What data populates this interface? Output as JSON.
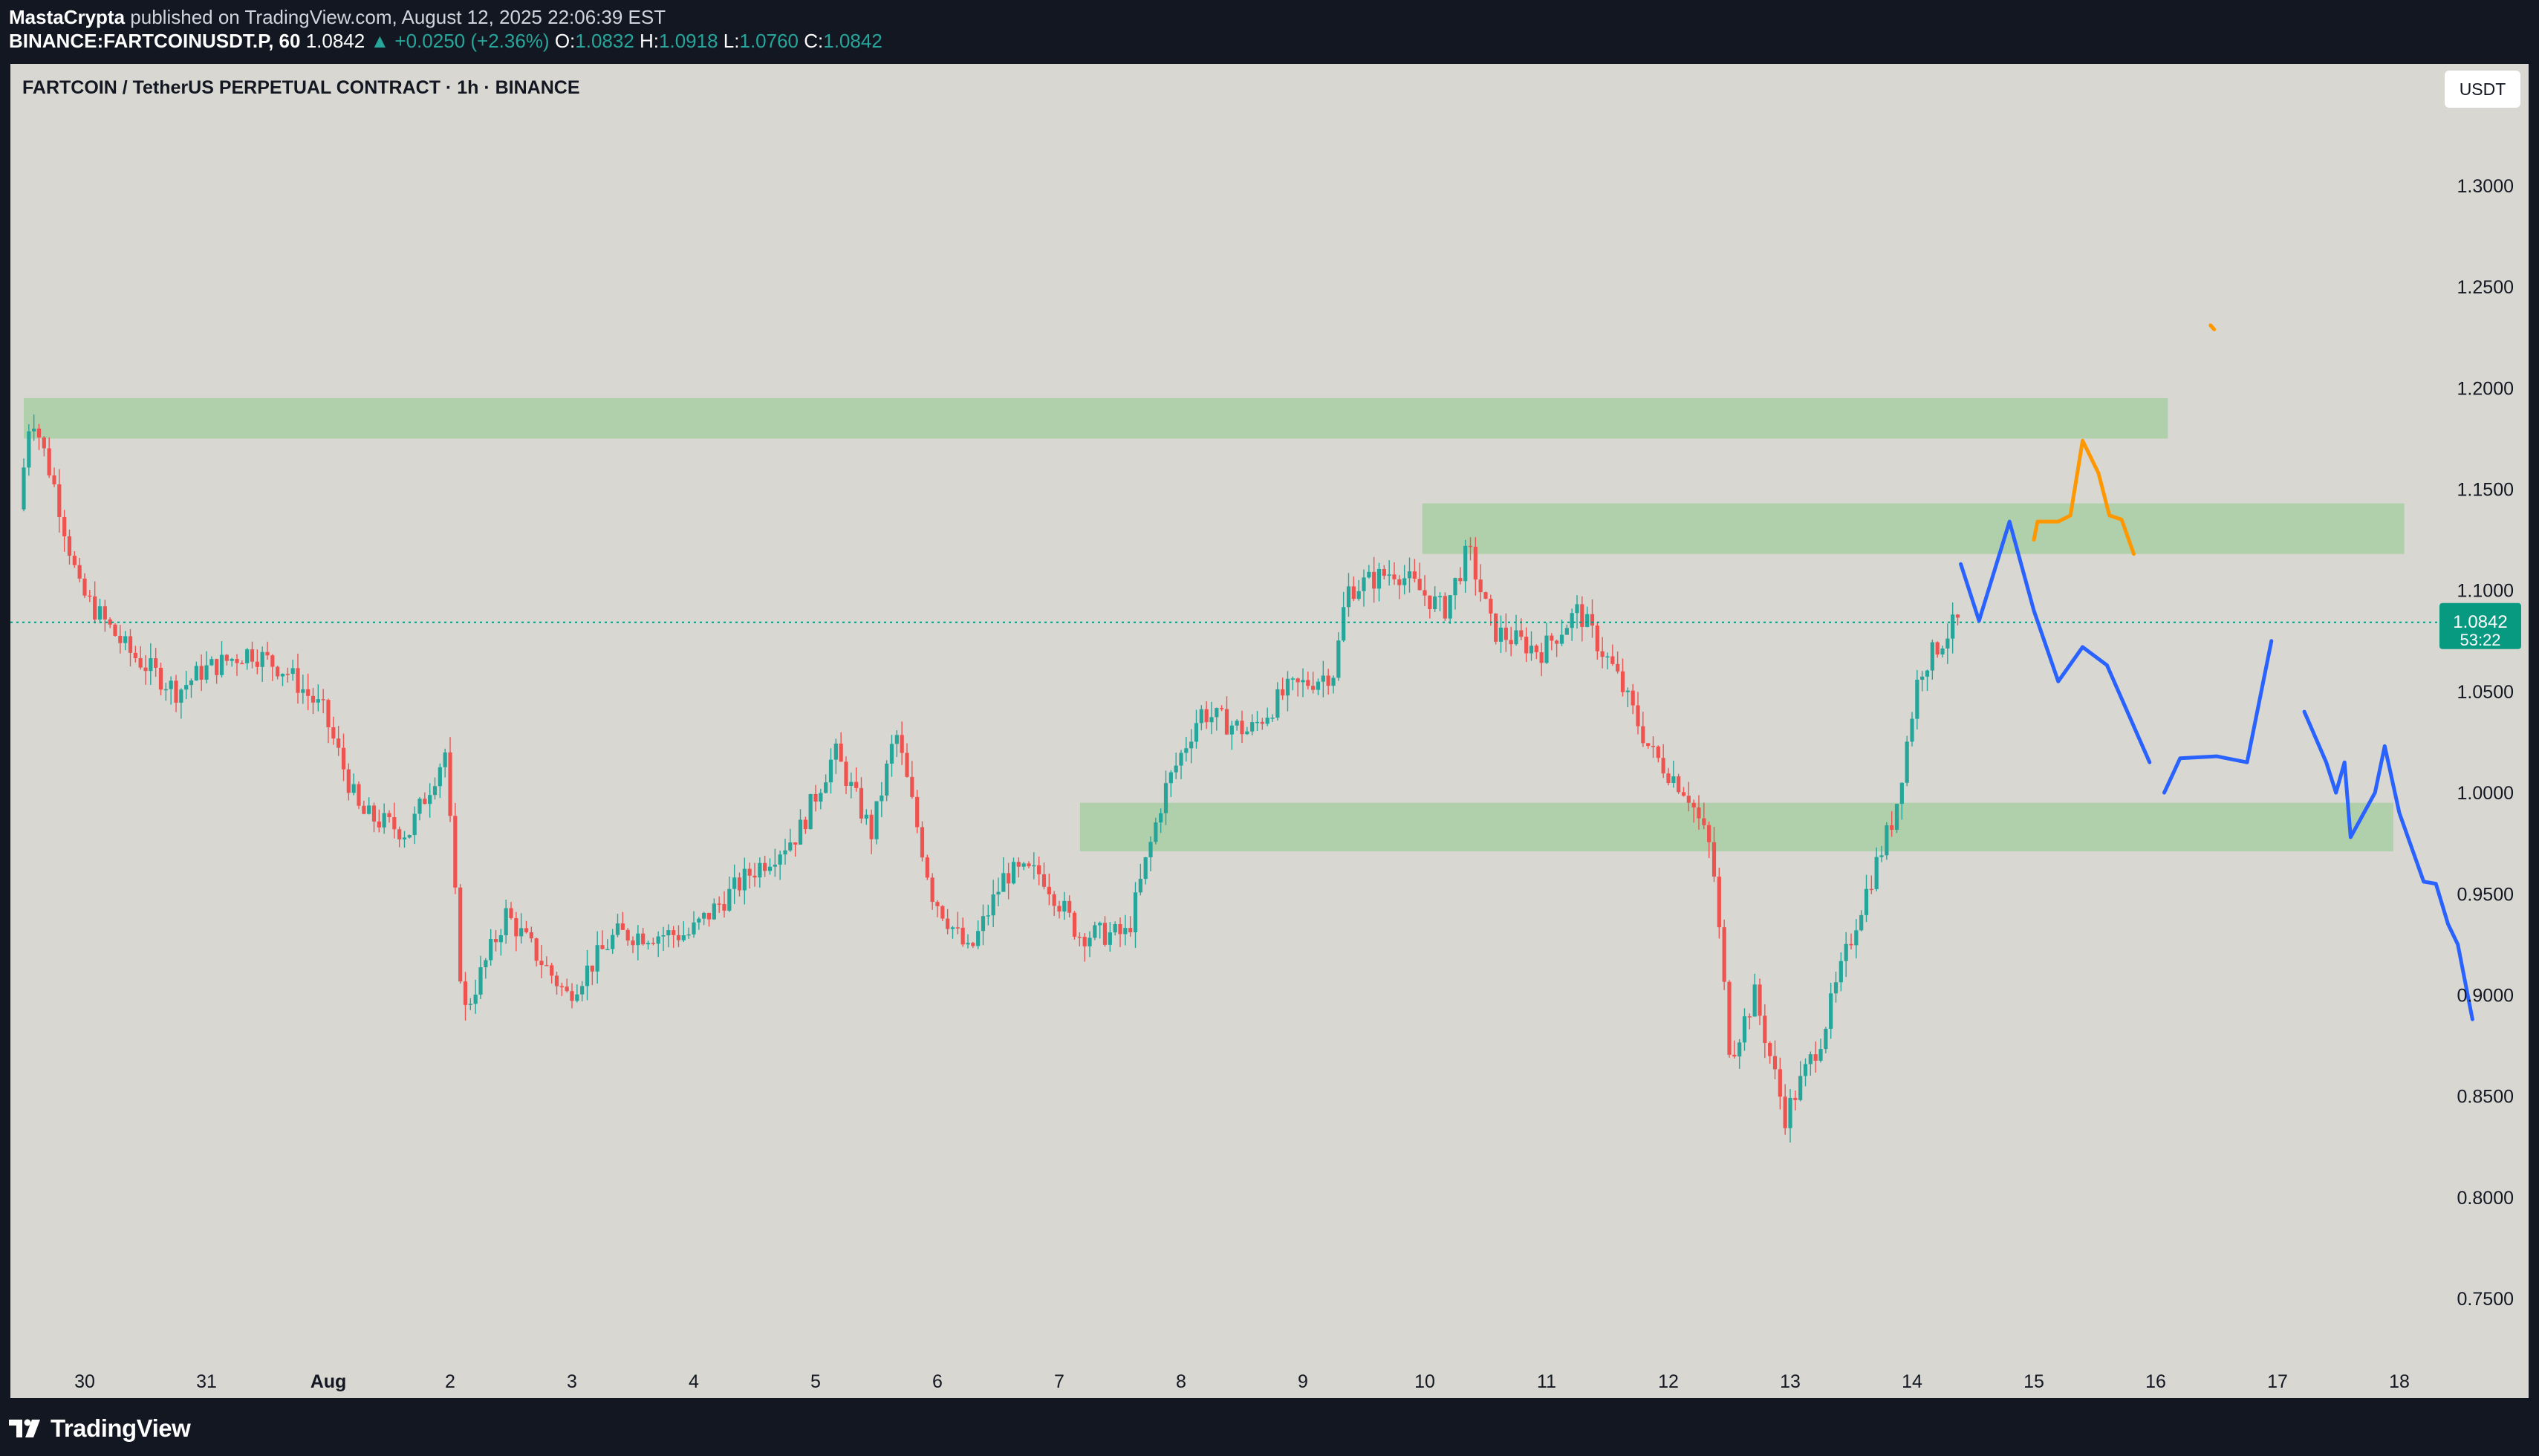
{
  "header": {
    "author": "MastaCrypta",
    "published_text": "published on TradingView.com, August 12, 2025 22:06:39 EST",
    "symbol": "BINANCE:FARTCOINUSDT.P, 60",
    "last": "1.0842",
    "change": "▲ +0.0250 (+2.36%)",
    "o_label": "O:",
    "o_value": "1.0832",
    "h_label": "H:",
    "h_value": "1.0918",
    "l_label": "L:",
    "l_value": "1.0760",
    "c_label": "C:",
    "c_value": "1.0842"
  },
  "chart_title": "FARTCOIN / TetherUS PERPETUAL CONTRACT · 1h · BINANCE",
  "currency_button": "USDT",
  "price_badge": {
    "price": "1.0842",
    "countdown": "53:22"
  },
  "footer": {
    "brand": "TradingView"
  },
  "colors": {
    "background": "#d8d7d2",
    "up": "#26a69a",
    "down": "#ef5350",
    "zone": "#8fc98b",
    "projection_blue": "#2962ff",
    "projection_orange": "#ff9800",
    "badge": "#089981"
  },
  "chart_data": {
    "type": "candlestick",
    "interval": "1h",
    "ylim": [
      0.72,
      1.335
    ],
    "y_ticks": [
      "1.3000",
      "1.2500",
      "1.2000",
      "1.1500",
      "1.1000",
      "1.0500",
      "1.0000",
      "0.9500",
      "0.9000",
      "0.8500",
      "0.8000",
      "0.7500"
    ],
    "x_tick_labels": [
      "30",
      "31",
      "Aug",
      "2",
      "3",
      "4",
      "5",
      "6",
      "7",
      "8",
      "9",
      "10",
      "11",
      "12",
      "13",
      "14",
      "15",
      "16",
      "17",
      "18"
    ],
    "last_price": 1.0842,
    "price_path": [
      {
        "day": 29.5,
        "price": 1.14
      },
      {
        "day": 29.6,
        "price": 1.19
      },
      {
        "day": 29.8,
        "price": 1.15
      },
      {
        "day": 30.0,
        "price": 1.1
      },
      {
        "day": 30.4,
        "price": 1.07
      },
      {
        "day": 30.8,
        "price": 1.05
      },
      {
        "day": 31.0,
        "price": 1.06
      },
      {
        "day": 31.4,
        "price": 1.07
      },
      {
        "day": 31.7,
        "price": 1.06
      },
      {
        "day": 32.0,
        "price": 1.04
      },
      {
        "day": 32.3,
        "price": 0.99
      },
      {
        "day": 32.7,
        "price": 0.98
      },
      {
        "day": 33.0,
        "price": 1.02
      },
      {
        "day": 33.15,
        "price": 0.89
      },
      {
        "day": 33.5,
        "price": 0.94
      },
      {
        "day": 34.0,
        "price": 0.9
      },
      {
        "day": 34.4,
        "price": 0.93
      },
      {
        "day": 35.0,
        "price": 0.93
      },
      {
        "day": 35.5,
        "price": 0.96
      },
      {
        "day": 35.9,
        "price": 0.98
      },
      {
        "day": 36.2,
        "price": 1.02
      },
      {
        "day": 36.5,
        "price": 0.98
      },
      {
        "day": 36.7,
        "price": 1.03
      },
      {
        "day": 37.0,
        "price": 0.95
      },
      {
        "day": 37.3,
        "price": 0.92
      },
      {
        "day": 37.6,
        "price": 0.96
      },
      {
        "day": 37.9,
        "price": 0.96
      },
      {
        "day": 38.2,
        "price": 0.93
      },
      {
        "day": 38.6,
        "price": 0.93
      },
      {
        "day": 38.9,
        "price": 1.0
      },
      {
        "day": 39.2,
        "price": 1.04
      },
      {
        "day": 39.6,
        "price": 1.03
      },
      {
        "day": 39.9,
        "price": 1.05
      },
      {
        "day": 40.3,
        "price": 1.06
      },
      {
        "day": 40.4,
        "price": 1.1
      },
      {
        "day": 40.8,
        "price": 1.11
      },
      {
        "day": 41.2,
        "price": 1.09
      },
      {
        "day": 41.4,
        "price": 1.12
      },
      {
        "day": 41.6,
        "price": 1.08
      },
      {
        "day": 42.0,
        "price": 1.07
      },
      {
        "day": 42.3,
        "price": 1.09
      },
      {
        "day": 42.6,
        "price": 1.06
      },
      {
        "day": 42.9,
        "price": 1.02
      },
      {
        "day": 43.2,
        "price": 1.0
      },
      {
        "day": 43.4,
        "price": 0.97
      },
      {
        "day": 43.55,
        "price": 0.87
      },
      {
        "day": 43.75,
        "price": 0.9
      },
      {
        "day": 44.0,
        "price": 0.84
      },
      {
        "day": 44.3,
        "price": 0.88
      },
      {
        "day": 44.6,
        "price": 0.94
      },
      {
        "day": 44.9,
        "price": 0.99
      },
      {
        "day": 45.1,
        "price": 1.06
      },
      {
        "day": 45.4,
        "price": 1.0842
      }
    ],
    "zones": [
      {
        "day_start": 29.5,
        "day_end": 47.1,
        "low": 1.175,
        "high": 1.195
      },
      {
        "day_start": 40.98,
        "day_end": 49.04,
        "low": 1.118,
        "high": 1.143
      },
      {
        "day_start": 38.17,
        "day_end": 48.95,
        "low": 0.971,
        "high": 0.995
      }
    ],
    "projections": [
      {
        "color": "blue",
        "points": [
          {
            "day": 45.4,
            "price": 1.113
          },
          {
            "day": 45.55,
            "price": 1.085
          },
          {
            "day": 45.8,
            "price": 1.134
          },
          {
            "day": 46.0,
            "price": 1.09
          },
          {
            "day": 46.2,
            "price": 1.055
          },
          {
            "day": 46.4,
            "price": 1.072
          },
          {
            "day": 46.6,
            "price": 1.063
          },
          {
            "day": 46.95,
            "price": 1.015
          }
        ]
      },
      {
        "color": "blue",
        "points": [
          {
            "day": 47.07,
            "price": 1.0
          },
          {
            "day": 47.2,
            "price": 1.017
          },
          {
            "day": 47.5,
            "price": 1.018
          },
          {
            "day": 47.75,
            "price": 1.015
          },
          {
            "day": 47.95,
            "price": 1.075
          }
        ]
      },
      {
        "color": "blue",
        "points": [
          {
            "day": 48.22,
            "price": 1.04
          },
          {
            "day": 48.4,
            "price": 1.015
          },
          {
            "day": 48.48,
            "price": 1.0
          },
          {
            "day": 48.55,
            "price": 1.015
          },
          {
            "day": 48.6,
            "price": 0.978
          },
          {
            "day": 48.8,
            "price": 1.0
          },
          {
            "day": 48.88,
            "price": 1.023
          },
          {
            "day": 49.0,
            "price": 0.99
          },
          {
            "day": 49.2,
            "price": 0.956
          },
          {
            "day": 49.3,
            "price": 0.955
          },
          {
            "day": 49.4,
            "price": 0.935
          },
          {
            "day": 49.48,
            "price": 0.925
          },
          {
            "day": 49.6,
            "price": 0.888
          }
        ]
      },
      {
        "color": "orange",
        "points": [
          {
            "day": 46.0,
            "price": 1.125
          },
          {
            "day": 46.03,
            "price": 1.134
          },
          {
            "day": 46.2,
            "price": 1.134
          },
          {
            "day": 46.3,
            "price": 1.137
          },
          {
            "day": 46.4,
            "price": 1.174
          },
          {
            "day": 46.53,
            "price": 1.158
          },
          {
            "day": 46.62,
            "price": 1.137
          },
          {
            "day": 46.72,
            "price": 1.135
          },
          {
            "day": 46.82,
            "price": 1.118
          }
        ]
      },
      {
        "color": "orange",
        "points": [
          {
            "day": 47.45,
            "price": 1.231
          },
          {
            "day": 47.48,
            "price": 1.229
          }
        ]
      }
    ]
  }
}
